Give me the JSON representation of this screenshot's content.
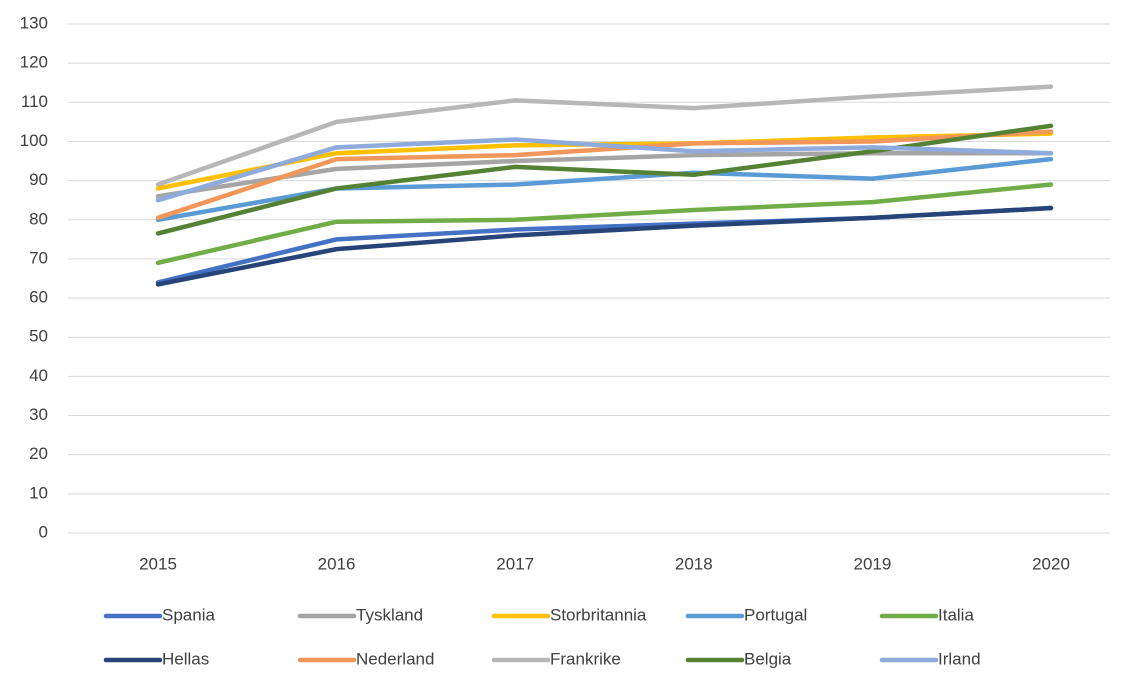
{
  "chart_data": {
    "type": "line",
    "categories": [
      "2015",
      "2016",
      "2017",
      "2018",
      "2019",
      "2020"
    ],
    "series": [
      {
        "name": "Spania",
        "color": "#4472c4",
        "values": [
          64,
          75,
          77.5,
          79,
          80.5,
          83
        ]
      },
      {
        "name": "Tyskland",
        "color": "#a5a5a5",
        "values": [
          86,
          93,
          95,
          96.5,
          97,
          97
        ]
      },
      {
        "name": "Storbritannia",
        "color": "#ffc000",
        "values": [
          88,
          97,
          99,
          99.5,
          101,
          102
        ]
      },
      {
        "name": "Portugal",
        "color": "#5b9bd5",
        "values": [
          80,
          88,
          89,
          92,
          90.5,
          95.5
        ]
      },
      {
        "name": "Italia",
        "color": "#70ad47",
        "values": [
          69,
          79.5,
          80,
          82.5,
          84.5,
          89
        ]
      },
      {
        "name": "Hellas",
        "color": "#264478",
        "values": [
          63.5,
          72.5,
          76,
          78.5,
          80.5,
          83
        ]
      },
      {
        "name": "Nederland",
        "color": "#f1975a",
        "values": [
          80.5,
          95.5,
          96.5,
          99.5,
          100,
          102.5
        ]
      },
      {
        "name": "Frankrike",
        "color": "#b7b7b7",
        "values": [
          89,
          105,
          110.5,
          108.5,
          111.5,
          114
        ]
      },
      {
        "name": "Belgia",
        "color": "#548235",
        "values": [
          76.5,
          88,
          93.5,
          91.5,
          97.5,
          104
        ]
      },
      {
        "name": "Irland",
        "color": "#8faadc",
        "values": [
          85,
          98.5,
          100.5,
          97.5,
          98.5,
          97
        ]
      }
    ],
    "ylim": [
      0,
      130
    ],
    "yticks": [
      0,
      10,
      20,
      30,
      40,
      50,
      60,
      70,
      80,
      90,
      100,
      110,
      120,
      130
    ],
    "grid": true,
    "legend": "bottom"
  }
}
